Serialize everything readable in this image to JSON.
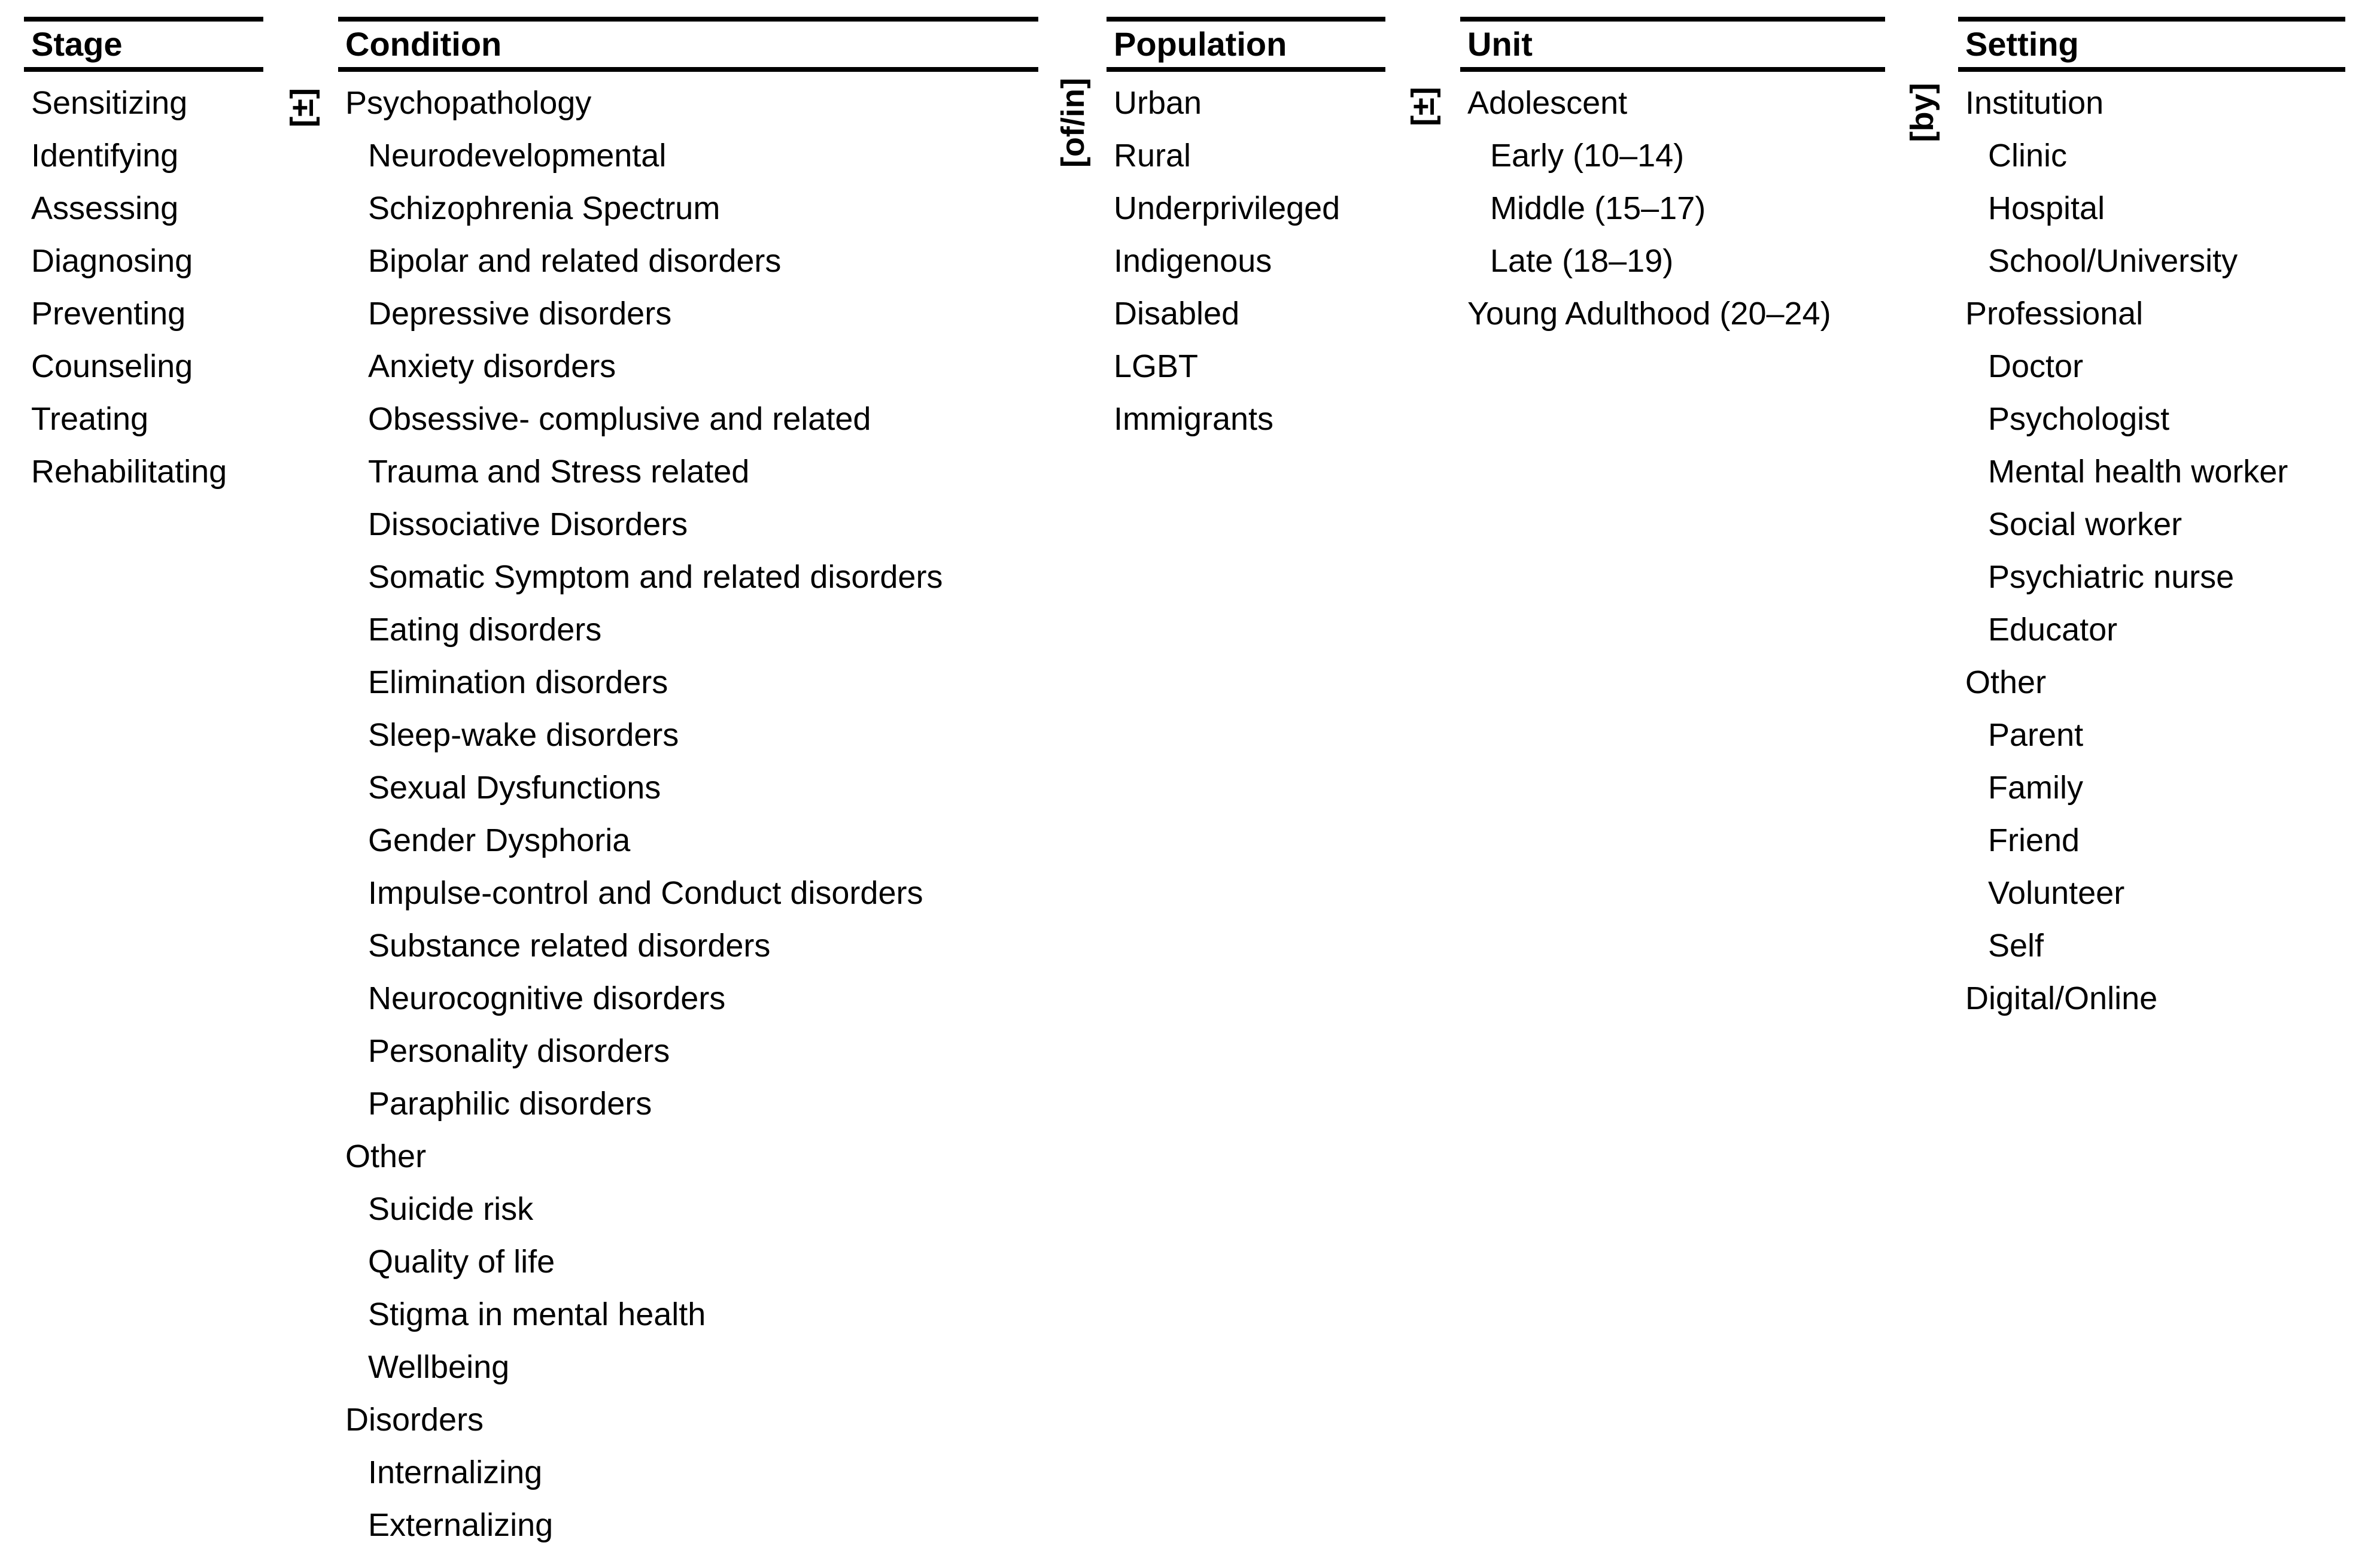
{
  "figure": {
    "colors": {
      "text": "#000000",
      "background": "#ffffff",
      "rule": "#000000"
    },
    "connectors": {
      "stage_condition": "[±]",
      "condition_population": "[of/in]",
      "population_unit": "[±]",
      "unit_setting": "[by]"
    },
    "columns": {
      "stage": {
        "header": "Stage",
        "items": [
          {
            "level": 0,
            "text": "Sensitizing"
          },
          {
            "level": 0,
            "text": "Identifying"
          },
          {
            "level": 0,
            "text": "Assessing"
          },
          {
            "level": 0,
            "text": "Diagnosing"
          },
          {
            "level": 0,
            "text": "Preventing"
          },
          {
            "level": 0,
            "text": "Counseling"
          },
          {
            "level": 0,
            "text": "Treating"
          },
          {
            "level": 0,
            "text": "Rehabilitating"
          }
        ]
      },
      "condition": {
        "header": "Condition",
        "items": [
          {
            "level": 0,
            "text": "Psychopathology"
          },
          {
            "level": 1,
            "text": "Neurodevelopmental"
          },
          {
            "level": 1,
            "text": "Schizophrenia Spectrum"
          },
          {
            "level": 1,
            "text": "Bipolar and related disorders"
          },
          {
            "level": 1,
            "text": "Depressive disorders"
          },
          {
            "level": 1,
            "text": "Anxiety disorders"
          },
          {
            "level": 1,
            "text": "Obsessive- complusive and related"
          },
          {
            "level": 1,
            "text": "Trauma and Stress related"
          },
          {
            "level": 1,
            "text": "Dissociative Disorders"
          },
          {
            "level": 1,
            "text": "Somatic Symptom and related disorders"
          },
          {
            "level": 1,
            "text": "Eating disorders"
          },
          {
            "level": 1,
            "text": "Elimination disorders"
          },
          {
            "level": 1,
            "text": "Sleep-wake disorders"
          },
          {
            "level": 1,
            "text": "Sexual Dysfunctions"
          },
          {
            "level": 1,
            "text": "Gender Dysphoria"
          },
          {
            "level": 1,
            "text": "Impulse-control and Conduct disorders"
          },
          {
            "level": 1,
            "text": "Substance related disorders"
          },
          {
            "level": 1,
            "text": "Neurocognitive disorders"
          },
          {
            "level": 1,
            "text": "Personality disorders"
          },
          {
            "level": 1,
            "text": "Paraphilic disorders"
          },
          {
            "level": 0,
            "text": "Other"
          },
          {
            "level": 1,
            "text": "Suicide risk"
          },
          {
            "level": 1,
            "text": "Quality of life"
          },
          {
            "level": 1,
            "text": "Stigma in mental health"
          },
          {
            "level": 1,
            "text": "Wellbeing"
          },
          {
            "level": 0,
            "text": "Disorders"
          },
          {
            "level": 1,
            "text": "Internalizing"
          },
          {
            "level": 1,
            "text": "Externalizing"
          }
        ]
      },
      "population": {
        "header": "Population",
        "items": [
          {
            "level": 0,
            "text": "Urban"
          },
          {
            "level": 0,
            "text": "Rural"
          },
          {
            "level": 0,
            "text": "Underprivileged"
          },
          {
            "level": 0,
            "text": "Indigenous"
          },
          {
            "level": 0,
            "text": "Disabled"
          },
          {
            "level": 0,
            "text": "LGBT"
          },
          {
            "level": 0,
            "text": "Immigrants"
          }
        ]
      },
      "unit": {
        "header": "Unit",
        "items": [
          {
            "level": 0,
            "text": "Adolescent"
          },
          {
            "level": 1,
            "text": "Early (10–14)"
          },
          {
            "level": 1,
            "text": "Middle (15–17)"
          },
          {
            "level": 1,
            "text": "Late (18–19)"
          },
          {
            "level": 0,
            "text": "Young Adulthood (20–24)"
          }
        ]
      },
      "setting": {
        "header": "Setting",
        "items": [
          {
            "level": 0,
            "text": "Institution"
          },
          {
            "level": 1,
            "text": "Clinic"
          },
          {
            "level": 1,
            "text": "Hospital"
          },
          {
            "level": 1,
            "text": "School/University"
          },
          {
            "level": 0,
            "text": "Professional"
          },
          {
            "level": 1,
            "text": "Doctor"
          },
          {
            "level": 1,
            "text": "Psychologist"
          },
          {
            "level": 1,
            "text": "Mental health worker"
          },
          {
            "level": 1,
            "text": "Social worker"
          },
          {
            "level": 1,
            "text": "Psychiatric nurse"
          },
          {
            "level": 1,
            "text": "Educator"
          },
          {
            "level": 0,
            "text": "Other"
          },
          {
            "level": 1,
            "text": "Parent"
          },
          {
            "level": 1,
            "text": "Family"
          },
          {
            "level": 1,
            "text": "Friend"
          },
          {
            "level": 1,
            "text": "Volunteer"
          },
          {
            "level": 1,
            "text": "Self"
          },
          {
            "level": 0,
            "text": "Digital/Online"
          }
        ]
      }
    }
  }
}
